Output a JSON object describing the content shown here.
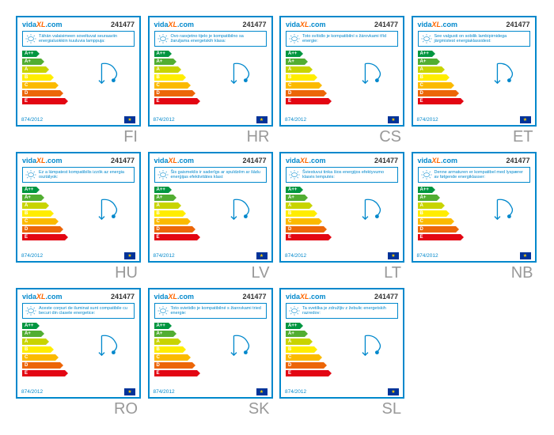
{
  "common": {
    "brand_prefix": "vida",
    "brand_x": "XL",
    "brand_suffix": ".com",
    "product_number": "241477",
    "regulation": "874/2012",
    "border_color": "#0088cc",
    "highlight_color": "#ff6600",
    "bar_colors": {
      "Aplusplus": "#009640",
      "Aplus": "#52ae32",
      "A": "#c8d400",
      "B": "#ffed00",
      "C": "#fbba00",
      "D": "#ec6608",
      "E": "#e30613"
    },
    "bar_widths": {
      "Aplusplus": 18,
      "Aplus": 24,
      "A": 30,
      "B": 36,
      "C": 42,
      "D": 48,
      "E": 54
    },
    "bar_labels": [
      "A++",
      "A+",
      "A",
      "B",
      "C",
      "D",
      "E"
    ]
  },
  "labels": [
    {
      "lang": "FI",
      "text": "Tähän valaisimeen soveltuvat seuraaviin energialuokkiin kuuluvia lamppuja:"
    },
    {
      "lang": "HR",
      "text": "Ovo rasvjetno tijelo je kompatibilno sa žaruljama energetskih klasa:"
    },
    {
      "lang": "CS",
      "text": "Toto svítidlo je kompatibilní s žárovkami tříd energie:"
    },
    {
      "lang": "ET",
      "text": "See valgusti on sobilik lambipirnidega järgmistest energiaklassidest:"
    },
    {
      "lang": "HU",
      "text": "Ez a lámpatest kompatibilis izzók az energia osztályok:"
    },
    {
      "lang": "LV",
      "text": "Šis gaismeklis ir saderīgs ar spuldzēm ar šādu enerģijas efektivitātes klasi:"
    },
    {
      "lang": "LT",
      "text": "Šviestuvui tinka šios energijos efektyvumo klasės lemputės:"
    },
    {
      "lang": "NB",
      "text": "Denne armaturen er kompatibel med lyspærer av følgende energiklasser:"
    },
    {
      "lang": "RO",
      "text": "Aceste corpuri de iluminat sunt compatibile cu becuri din clasele energetice:"
    },
    {
      "lang": "SK",
      "text": "Toto svietidlo je kompatibilné s žiarovkami tried energie:"
    },
    {
      "lang": "SL",
      "text": "Ta svetilka je združljiv z žebulic energetskih razredov:"
    }
  ]
}
